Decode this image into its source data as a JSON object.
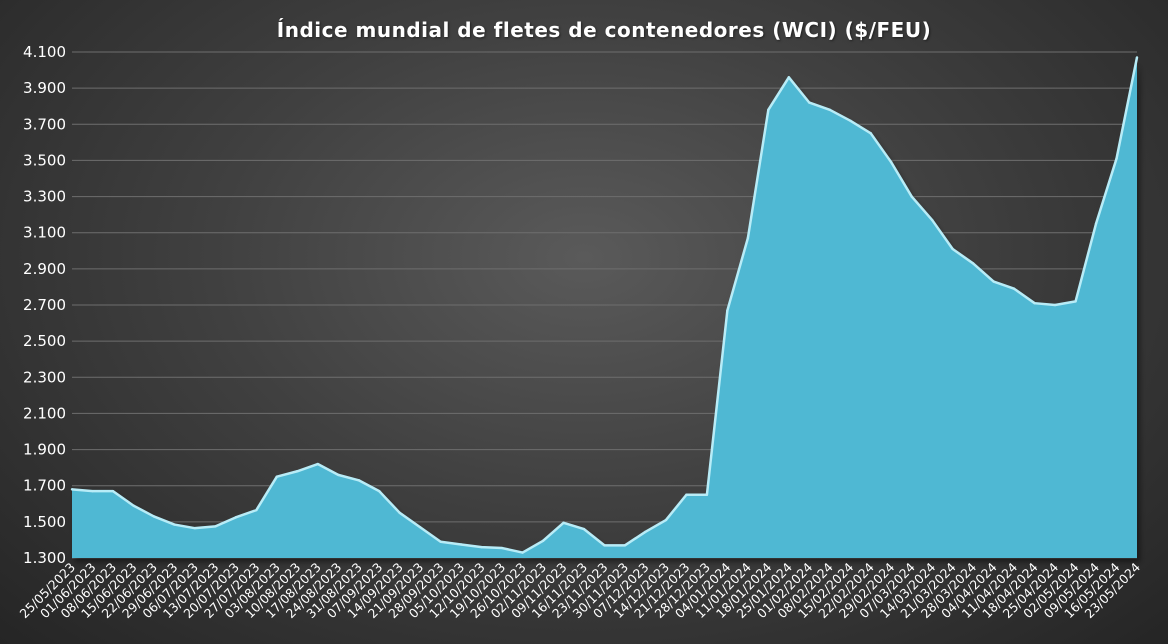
{
  "chart_data": {
    "type": "area",
    "title": "Índice mundial de fletes de contenedores (WCI) ($/FEU)",
    "ylim": [
      1300,
      4100
    ],
    "y_ticks": [
      1300,
      1500,
      1700,
      1900,
      2100,
      2300,
      2500,
      2700,
      2900,
      3100,
      3300,
      3500,
      3700,
      3900,
      4100
    ],
    "y_tick_labels": [
      "1.300",
      "1.500",
      "1.700",
      "1.900",
      "2.100",
      "2.300",
      "2.500",
      "2.700",
      "2.900",
      "3.100",
      "3.300",
      "3.500",
      "3.700",
      "3.900",
      "4.100"
    ],
    "grid": true,
    "legend": "none",
    "colors": {
      "fill": "#4fb8d3",
      "edge": "#b8ecf7"
    },
    "x_labels": [
      "25/05/2023",
      "01/06/2023",
      "08/06/2023",
      "15/06/2023",
      "22/06/2023",
      "29/06/2023",
      "06/07/2023",
      "13/07/2023",
      "20/07/2023",
      "27/07/2023",
      "03/08/2023",
      "10/08/2023",
      "17/08/2023",
      "24/08/2023",
      "31/08/2023",
      "07/09/2023",
      "14/09/2023",
      "21/09/2023",
      "28/09/2023",
      "05/10/2023",
      "12/10/2023",
      "19/10/2023",
      "26/10/2023",
      "02/11/2023",
      "09/11/2023",
      "16/11/2023",
      "23/11/2023",
      "30/11/2023",
      "07/12/2023",
      "14/12/2023",
      "21/12/2023",
      "28/12/2023",
      "04/01/2024",
      "11/01/2024",
      "18/01/2024",
      "25/01/2024",
      "01/02/2024",
      "08/02/2024",
      "15/02/2024",
      "22/02/2024",
      "29/02/2024",
      "07/03/2024",
      "14/03/2024",
      "21/03/2024",
      "28/03/2024",
      "04/04/2024",
      "11/04/2024",
      "18/04/2024",
      "25/04/2024",
      "02/05/2024",
      "09/05/2024",
      "16/05/2024",
      "23/05/2024"
    ],
    "values": [
      1680,
      1670,
      1670,
      1590,
      1530,
      1485,
      1465,
      1475,
      1525,
      1565,
      1750,
      1780,
      1820,
      1760,
      1730,
      1670,
      1550,
      1470,
      1390,
      1375,
      1360,
      1355,
      1330,
      1395,
      1495,
      1460,
      1370,
      1370,
      1445,
      1510,
      1650,
      1650,
      2670,
      3070,
      3780,
      3960,
      3820,
      3780,
      3720,
      3650,
      3490,
      3300,
      3170,
      3010,
      2930,
      2830,
      2790,
      2710,
      2700,
      2720,
      3150,
      3510,
      4070
    ]
  }
}
